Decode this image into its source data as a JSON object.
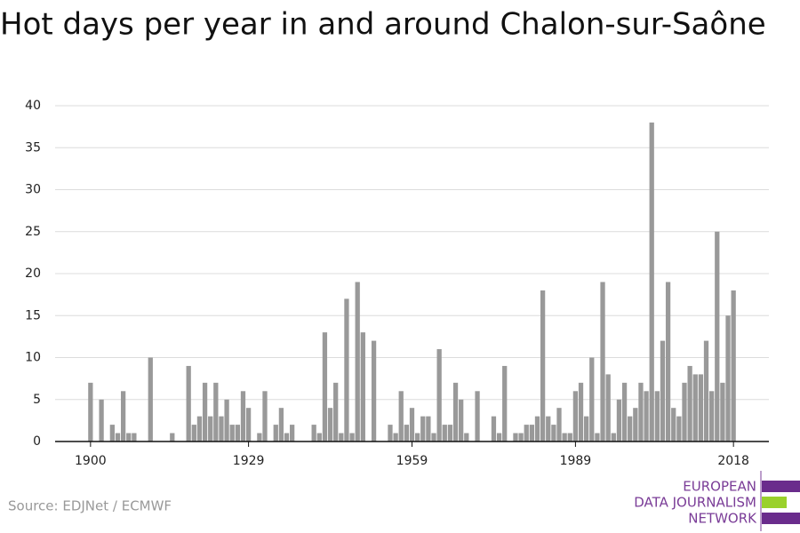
{
  "chart_data": {
    "type": "bar",
    "title": "Hot days per year in and around Chalon-sur-Saône",
    "source": "Source: EDJNet / ECMWF",
    "color": "#999999",
    "grid": true,
    "x": [
      1900,
      1901,
      1902,
      1903,
      1904,
      1905,
      1906,
      1907,
      1908,
      1909,
      1910,
      1911,
      1912,
      1913,
      1914,
      1915,
      1916,
      1917,
      1918,
      1919,
      1920,
      1921,
      1922,
      1923,
      1924,
      1925,
      1926,
      1927,
      1928,
      1929,
      1930,
      1931,
      1932,
      1933,
      1934,
      1935,
      1936,
      1937,
      1938,
      1939,
      1940,
      1941,
      1942,
      1943,
      1944,
      1945,
      1946,
      1947,
      1948,
      1949,
      1950,
      1951,
      1952,
      1953,
      1954,
      1955,
      1956,
      1957,
      1958,
      1959,
      1960,
      1961,
      1962,
      1963,
      1964,
      1965,
      1966,
      1967,
      1968,
      1969,
      1970,
      1971,
      1972,
      1973,
      1974,
      1975,
      1976,
      1977,
      1978,
      1979,
      1980,
      1981,
      1982,
      1983,
      1984,
      1985,
      1986,
      1987,
      1988,
      1989,
      1990,
      1991,
      1992,
      1993,
      1994,
      1995,
      1996,
      1997,
      1998,
      1999,
      2000,
      2001,
      2002,
      2003,
      2004,
      2005,
      2006,
      2007,
      2008,
      2009,
      2010,
      2011,
      2012,
      2013,
      2014,
      2015,
      2016,
      2017,
      2018
    ],
    "values": [
      7,
      0,
      5,
      0,
      2,
      1,
      6,
      1,
      1,
      0,
      0,
      10,
      0,
      0,
      0,
      1,
      0,
      0,
      9,
      2,
      3,
      7,
      3,
      7,
      3,
      5,
      2,
      2,
      6,
      4,
      0,
      1,
      6,
      0,
      2,
      4,
      1,
      2,
      0,
      0,
      0,
      2,
      1,
      13,
      4,
      7,
      1,
      17,
      1,
      19,
      13,
      0,
      12,
      0,
      0,
      2,
      1,
      6,
      2,
      4,
      1,
      3,
      3,
      1,
      11,
      2,
      2,
      7,
      5,
      1,
      0,
      6,
      0,
      0,
      3,
      1,
      9,
      0,
      1,
      1,
      2,
      2,
      3,
      18,
      3,
      2,
      4,
      1,
      1,
      6,
      7,
      3,
      10,
      1,
      19,
      8,
      1,
      5,
      7,
      3,
      4,
      7,
      6,
      38,
      6,
      12,
      19,
      4,
      3,
      7,
      9,
      8,
      8,
      12,
      6,
      25,
      7,
      15,
      18
    ],
    "xlim": [
      1893.5,
      2024.5
    ],
    "xticks": [
      1900,
      1929,
      1959,
      1989,
      2018
    ],
    "ylim": [
      0,
      40
    ],
    "yticks": [
      0,
      5,
      10,
      15,
      20,
      25,
      30,
      35,
      40
    ]
  },
  "logo": {
    "lines": [
      "EUROPEAN",
      "DATA JOURNALISM",
      "NETWORK"
    ]
  }
}
